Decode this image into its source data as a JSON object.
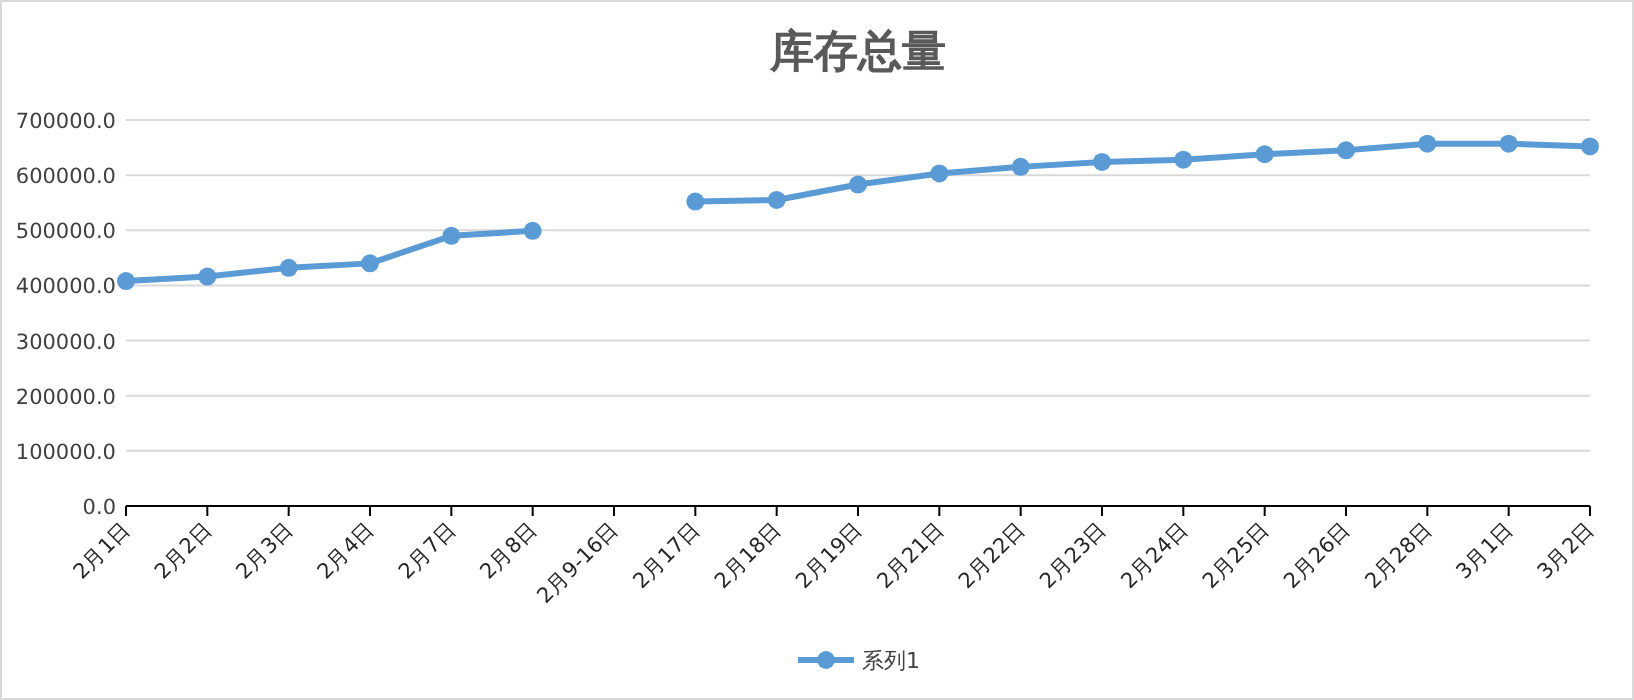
{
  "chart_data": {
    "type": "line",
    "title": "库存总量",
    "categories": [
      "2月1日",
      "2月2日",
      "2月3日",
      "2月4日",
      "2月7日",
      "2月8日",
      "2月9-16日",
      "2月17日",
      "2月18日",
      "2月19日",
      "2月21日",
      "2月22日",
      "2月23日",
      "2月24日",
      "2月25日",
      "2月26日",
      "2月28日",
      "3月1日",
      "3月2日"
    ],
    "series": [
      {
        "name": "系列1",
        "color": "#5b9bd5",
        "values": [
          408000,
          416000,
          432000,
          440000,
          490000,
          499000,
          null,
          552000,
          555000,
          583000,
          603000,
          615000,
          624000,
          628000,
          638000,
          645000,
          657000,
          657000,
          652000
        ]
      }
    ],
    "ylim": [
      0,
      700000
    ],
    "yticks": [
      {
        "value": 0,
        "label": "0.0"
      },
      {
        "value": 100000,
        "label": "100000.0"
      },
      {
        "value": 200000,
        "label": "200000.0"
      },
      {
        "value": 300000,
        "label": "300000.0"
      },
      {
        "value": 400000,
        "label": "400000.0"
      },
      {
        "value": 500000,
        "label": "500000.0"
      },
      {
        "value": 600000,
        "label": "600000.0"
      },
      {
        "value": 700000,
        "label": "700000.0"
      }
    ],
    "grid": "y",
    "legend": "bottom",
    "marker": "circle",
    "line_style": "solid"
  }
}
